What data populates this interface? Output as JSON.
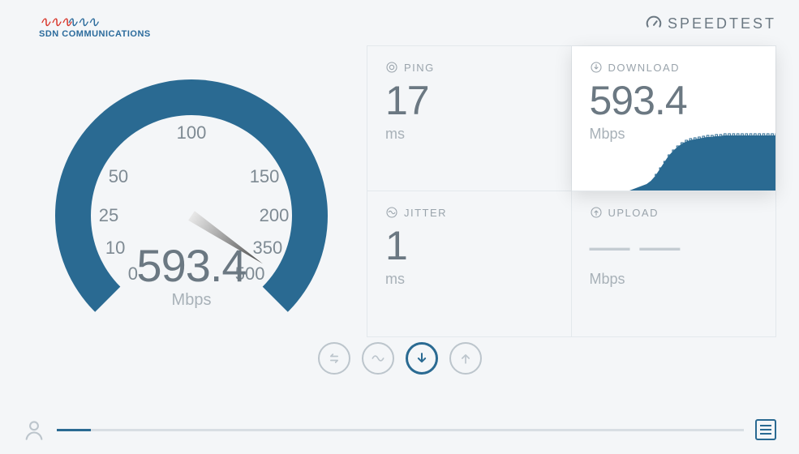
{
  "logo": {
    "name": "SDN COMMUNICATIONS",
    "wave_color_a": "#d9372c",
    "wave_color_b": "#2b6b9c",
    "text_color": "#2b6b9c"
  },
  "brand": {
    "label": "SPEEDTEST"
  },
  "gauge": {
    "ticks": [
      {
        "label": "0",
        "angle": 225
      },
      {
        "label": "10",
        "angle": 203
      },
      {
        "label": "25",
        "angle": 180
      },
      {
        "label": "50",
        "angle": 152
      },
      {
        "label": "100",
        "angle": 90
      },
      {
        "label": "150",
        "angle": 28
      },
      {
        "label": "200",
        "angle": 0
      },
      {
        "label": "350",
        "angle": -23
      },
      {
        "label": "500",
        "angle": -45
      }
    ],
    "ring_color": "#2a6a92",
    "ring_width": 44,
    "needle_angle_deg": -34,
    "needle_color_dark": "#4a4a4a",
    "needle_color_light": "#e6e6e6",
    "value": "593.4",
    "unit": "Mbps"
  },
  "panels": {
    "ping": {
      "label": "PING",
      "value": "17",
      "unit": "ms"
    },
    "download": {
      "label": "DOWNLOAD",
      "value": "593.4",
      "unit": "Mbps",
      "active": true,
      "chart_color": "#2a6a92",
      "chart_points": [
        0,
        2,
        4,
        6,
        8,
        12,
        18,
        26,
        34,
        42,
        48,
        53,
        57,
        60,
        62,
        63,
        64,
        65,
        66,
        66,
        67,
        67,
        68,
        68,
        68,
        68,
        68,
        68,
        68,
        68,
        68,
        68,
        68,
        68,
        68
      ]
    },
    "jitter": {
      "label": "JITTER",
      "value": "1",
      "unit": "ms"
    },
    "upload": {
      "label": "UPLOAD",
      "value": "— —",
      "unit": "Mbps"
    }
  },
  "status_icons": {
    "items": [
      "swap",
      "wave",
      "download",
      "upload"
    ],
    "active_index": 2,
    "inactive_color": "#bcc5cc",
    "active_color": "#2a6a92"
  },
  "footer": {
    "progress_percent": 5,
    "progress_color": "#2a6a92",
    "track_color": "#d8dee3"
  },
  "colors": {
    "page_bg": "#f4f6f8",
    "panel_border": "#e3e8ec",
    "text_muted": "#a8b1b8",
    "text_main": "#6b7882"
  }
}
